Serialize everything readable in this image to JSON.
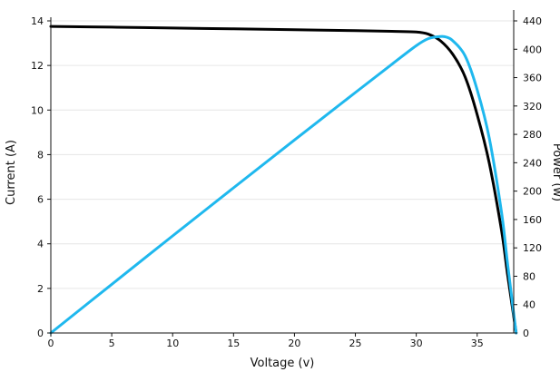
{
  "chart_data": {
    "type": "line",
    "xlabel": "Voltage (v)",
    "ylabel_left": "Current (A)",
    "ylabel_right": "Power (w)",
    "xlim": [
      0,
      38
    ],
    "ylim_left": [
      0,
      14
    ],
    "ylim_right": [
      0,
      440
    ],
    "x_ticks": [
      0,
      5,
      10,
      15,
      20,
      25,
      30,
      35
    ],
    "y_left_ticks": [
      0,
      2,
      4,
      6,
      8,
      10,
      12,
      14
    ],
    "y_right_ticks": [
      0,
      40,
      80,
      120,
      160,
      200,
      240,
      280,
      320,
      360,
      400,
      440
    ],
    "grid": "horizontal",
    "colors": {
      "current": "#000000",
      "power": "#1fb8ee",
      "grid": "#e6e6e6"
    },
    "series": [
      {
        "axis": "left",
        "x": [
          0,
          5,
          10,
          15,
          20,
          25,
          28,
          30,
          31,
          32,
          33,
          34,
          35,
          36,
          37,
          37.5,
          38.2
        ],
        "y": [
          13.75,
          13.72,
          13.68,
          13.64,
          13.6,
          13.56,
          13.53,
          13.5,
          13.4,
          13.1,
          12.5,
          11.5,
          9.8,
          7.6,
          4.6,
          2.6,
          0
        ]
      },
      {
        "axis": "right",
        "x": [
          0,
          5,
          10,
          15,
          20,
          25,
          28,
          30,
          31,
          32,
          32.5,
          33,
          34,
          35,
          36,
          37,
          37.5,
          38.2
        ],
        "y": [
          0,
          68.6,
          136.8,
          204.6,
          272,
          339,
          378.8,
          405,
          415,
          418,
          417,
          412,
          391,
          343,
          274,
          170,
          97,
          0
        ]
      }
    ]
  }
}
